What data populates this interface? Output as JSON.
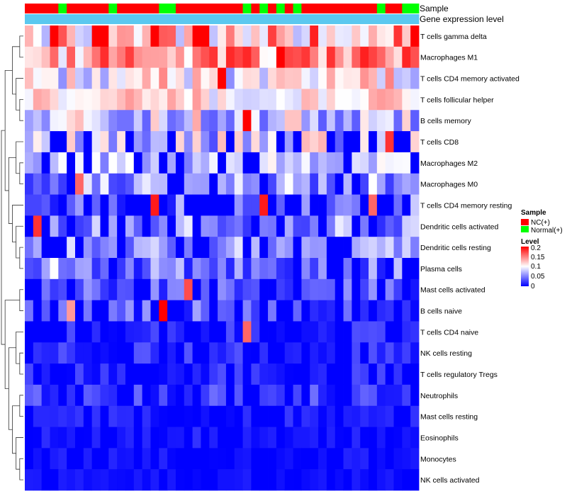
{
  "chart_data": {
    "type": "heatmap",
    "title": "",
    "rows": [
      "T cells gamma delta",
      "Macrophages M1",
      "T cells CD4 memory activated",
      "T cells follicular helper",
      "B cells memory",
      "T cells CD8",
      "Macrophages M2",
      "Macrophages M0",
      "T cells CD4 memory resting",
      "Dendritic cells activated",
      "Dendritic cells resting",
      "Plasma cells",
      "Mast cells activated",
      "B cells naive",
      "T cells CD4 naive",
      "NK cells resting",
      "T cells regulatory  Tregs",
      "Neutrophils",
      "Mast cells resting",
      "Eosinophils",
      "Monocytes",
      "NK cells activated"
    ],
    "annotation_tracks": [
      {
        "label": "Sample",
        "key": "sample"
      },
      {
        "label": "Gene expression level",
        "key": "level"
      }
    ],
    "sample_groups": [
      "N",
      "N",
      "N",
      "N",
      "G",
      "N",
      "N",
      "N",
      "N",
      "N",
      "G",
      "N",
      "N",
      "N",
      "N",
      "N",
      "G",
      "G",
      "N",
      "N",
      "N",
      "N",
      "N",
      "N",
      "N",
      "N",
      "G",
      "N",
      "G",
      "N",
      "G",
      "N",
      "G",
      "N",
      "N",
      "N",
      "N",
      "N",
      "N",
      "N",
      "N",
      "N",
      "G",
      "N",
      "N",
      "G",
      "G"
    ],
    "level_values": [
      0.1,
      0.1,
      0.1,
      0.1,
      0.1,
      0.1,
      0.1,
      0.1,
      0.1,
      0.1,
      0.1,
      0.1,
      0.1,
      0.1,
      0.1,
      0.1,
      0.1,
      0.1,
      0.1,
      0.1,
      0.1,
      0.1,
      0.1,
      0.1,
      0.1,
      0.1,
      0.1,
      0.1,
      0.1,
      0.1,
      0.1,
      0.1,
      0.1,
      0.1,
      0.1,
      0.1,
      0.1,
      0.1,
      0.1,
      0.1,
      0.1,
      0.1,
      0.1,
      0.1,
      0.1,
      0.1,
      0.1
    ],
    "colorscale": {
      "min": 0,
      "mid": 0.1,
      "max": 0.2,
      "low_color": "#0000ff",
      "mid_color": "#ffffff",
      "high_color": "#ff0000"
    },
    "row_means": [
      0.13,
      0.14,
      0.1,
      0.11,
      0.085,
      0.08,
      0.075,
      0.06,
      0.03,
      0.055,
      0.06,
      0.045,
      0.035,
      0.025,
      0.012,
      0.015,
      0.012,
      0.025,
      0.008,
      0.008,
      0.005,
      0.004
    ],
    "row_spread": [
      0.06,
      0.05,
      0.05,
      0.03,
      0.05,
      0.05,
      0.03,
      0.04,
      0.05,
      0.04,
      0.03,
      0.035,
      0.03,
      0.04,
      0.02,
      0.02,
      0.02,
      0.02,
      0.015,
      0.012,
      0.01,
      0.008
    ],
    "hot_cells": [
      [
        13,
        16,
        0.2
      ],
      [
        8,
        15,
        0.19
      ],
      [
        8,
        28,
        0.19
      ],
      [
        4,
        26,
        0.2
      ],
      [
        12,
        19,
        0.17
      ],
      [
        13,
        5,
        0.14
      ],
      [
        9,
        1,
        0.18
      ],
      [
        11,
        3,
        0.1
      ],
      [
        7,
        6,
        0.16
      ],
      [
        8,
        41,
        0.16
      ],
      [
        14,
        26,
        0.16
      ],
      [
        2,
        23,
        0.2
      ],
      [
        1,
        30,
        0.2
      ],
      [
        5,
        43,
        0.18
      ],
      [
        0,
        3,
        0.2
      ],
      [
        0,
        8,
        0.2
      ],
      [
        0,
        9,
        0.2
      ],
      [
        0,
        15,
        0.2
      ],
      [
        0,
        20,
        0.2
      ],
      [
        0,
        21,
        0.2
      ],
      [
        0,
        46,
        0.2
      ]
    ],
    "legend": {
      "sample_title": "Sample",
      "sample_items": [
        {
          "label": "NC(+)",
          "color": "#ff0000"
        },
        {
          "label": "Normal(+)",
          "color": "#00ff00"
        }
      ],
      "level_title": "Level",
      "level_ticks": [
        "0.2",
        "0.15",
        "0.1",
        "0.05",
        "0"
      ]
    },
    "track_colors": {
      "N": "#ff0000",
      "G": "#00ff00",
      "level": "#5bc8ef"
    },
    "seed": 20240517
  }
}
